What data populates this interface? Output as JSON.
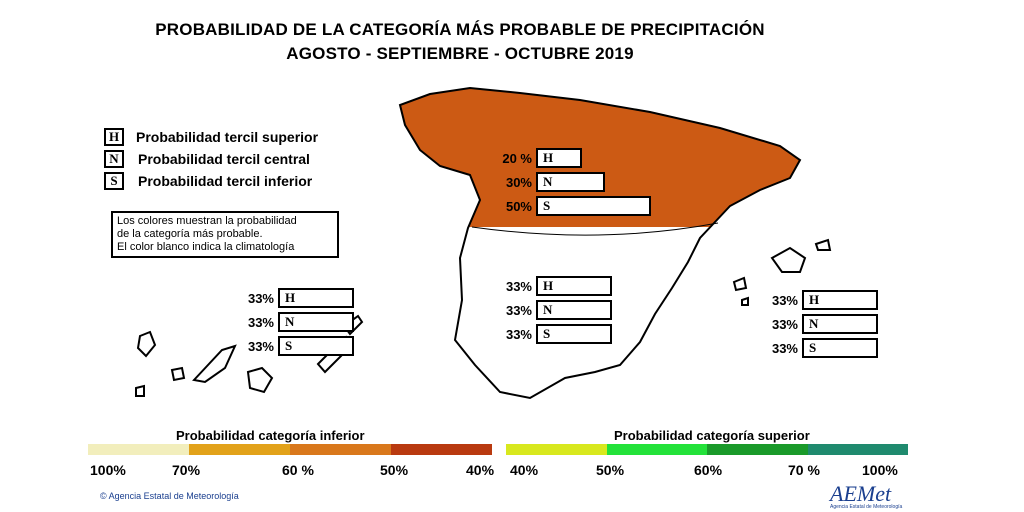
{
  "title": {
    "line1": "PROBABILIDAD DE LA CATEGORÍA MÁS PROBABLE DE PRECIPITACIÓN",
    "line2": "AGOSTO - SEPTIEMBRE - OCTUBRE 2019"
  },
  "legend": [
    {
      "letter": "H",
      "label": "Probabilidad  tercil superior"
    },
    {
      "letter": "N",
      "label": "Probabilidad  tercil central"
    },
    {
      "letter": "S",
      "label": "Probabilidad  tercil inferior"
    }
  ],
  "note": [
    "Los colores muestran la probabilidad",
    "de la categoría más probable.",
    "El color blanco indica la climatología"
  ],
  "regions": {
    "north": {
      "fill": "#cc5a14",
      "H": 20,
      "N": 30,
      "S": 50,
      "H_label": "20 %",
      "N_label": "30%",
      "S_label": "50%"
    },
    "center": {
      "fill": "#ffffff",
      "H": 33,
      "N": 33,
      "S": 33,
      "H_label": "33%",
      "N_label": "33%",
      "S_label": "33%"
    },
    "canarias": {
      "fill": "#ffffff",
      "H": 33,
      "N": 33,
      "S": 33,
      "H_label": "33%",
      "N_label": "33%",
      "S_label": "33%"
    },
    "baleares": {
      "fill": "#ffffff",
      "H": 33,
      "N": 33,
      "S": 33,
      "H_label": "33%",
      "N_label": "33%",
      "S_label": "33%"
    }
  },
  "scale_inferior": {
    "title": "Probabilidad categoría inferior",
    "ticks": [
      "100%",
      "70%",
      "60 %",
      "50%",
      "40%"
    ],
    "colors": [
      "#f2eebc",
      "#e2a21a",
      "#d9781c",
      "#b93a10"
    ]
  },
  "scale_superior": {
    "title": "Probabilidad categoría superior",
    "ticks": [
      "40%",
      "50%",
      "60%",
      "70 %",
      "100%"
    ],
    "colors": [
      "#d8e81e",
      "#23e23a",
      "#1a9a2a",
      "#1f8a6e"
    ]
  },
  "footer": "Agencia Estatal de Meteorología",
  "logo": "AEMet",
  "logo_sub": "Agencia Estatal de Meteorología"
}
